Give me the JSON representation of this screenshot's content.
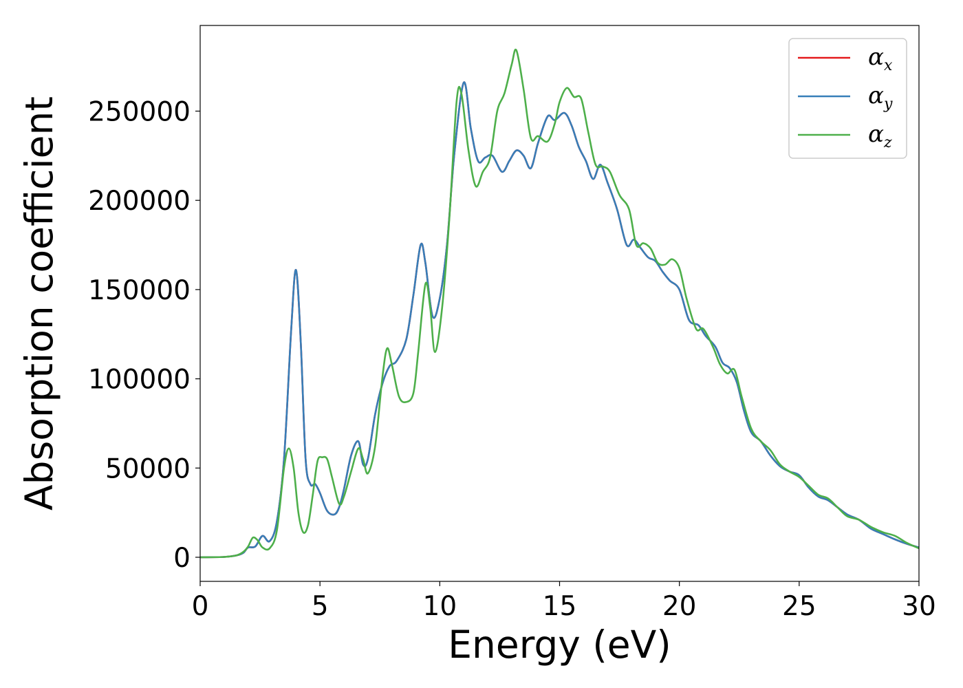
{
  "chart_data": {
    "type": "line",
    "xlabel": "Energy (eV)",
    "ylabel": "Absorption coefficient",
    "xlim": [
      0,
      30
    ],
    "ylim": [
      -13500,
      298000
    ],
    "xticks": [
      0,
      5,
      10,
      15,
      20,
      25,
      30
    ],
    "yticks": [
      0,
      50000,
      100000,
      150000,
      200000,
      250000
    ],
    "grid": false,
    "legend_position": "top-right",
    "series": [
      {
        "name": "α",
        "sub": "x",
        "color": "#e41a1c",
        "x": [
          0,
          1.0,
          1.5,
          1.8,
          2.0,
          2.3,
          2.6,
          2.9,
          3.2,
          3.5,
          3.8,
          4.0,
          4.2,
          4.4,
          4.6,
          4.8,
          5.0,
          5.3,
          5.6,
          5.8,
          6.0,
          6.3,
          6.6,
          6.8,
          7.0,
          7.3,
          7.6,
          7.9,
          8.2,
          8.6,
          8.9,
          9.2,
          9.4,
          9.7,
          10.0,
          10.3,
          10.6,
          11.0,
          11.3,
          11.6,
          11.9,
          12.2,
          12.6,
          12.9,
          13.2,
          13.5,
          13.8,
          14.1,
          14.5,
          14.8,
          15.2,
          15.5,
          15.8,
          16.1,
          16.4,
          16.7,
          17.0,
          17.4,
          17.8,
          18.1,
          18.4,
          18.7,
          19.0,
          19.3,
          19.6,
          20.0,
          20.4,
          20.8,
          21.1,
          21.5,
          21.8,
          22.1,
          22.4,
          22.7,
          23.0,
          23.4,
          23.8,
          24.2,
          24.6,
          25.0,
          25.4,
          25.8,
          26.2,
          26.6,
          27.0,
          27.5,
          28.0,
          28.5,
          29.0,
          29.5,
          30.0
        ],
        "y": [
          0,
          200,
          1000,
          2500,
          5500,
          6000,
          12000,
          9000,
          20000,
          55000,
          128000,
          161000,
          120000,
          55000,
          41000,
          41000,
          36000,
          26000,
          24000,
          28000,
          38000,
          57000,
          65000,
          52000,
          55000,
          80000,
          97000,
          107000,
          110000,
          122000,
          147000,
          175000,
          165000,
          135000,
          145000,
          175000,
          225000,
          266000,
          240000,
          222000,
          224000,
          225000,
          216000,
          222000,
          228000,
          225000,
          218000,
          232000,
          247000,
          245000,
          249000,
          242000,
          230000,
          222000,
          212000,
          220000,
          210000,
          195000,
          175000,
          178000,
          173000,
          168000,
          166000,
          160000,
          155000,
          150000,
          133000,
          130000,
          124000,
          118000,
          109000,
          106000,
          98000,
          82000,
          70000,
          65000,
          57000,
          51000,
          48000,
          46000,
          39000,
          34000,
          32000,
          28000,
          24000,
          21000,
          16000,
          13000,
          10000,
          7500,
          5500
        ]
      },
      {
        "name": "α",
        "sub": "y",
        "color": "#377eb8",
        "x": [
          0,
          1.0,
          1.5,
          1.8,
          2.0,
          2.3,
          2.6,
          2.9,
          3.2,
          3.5,
          3.8,
          4.0,
          4.2,
          4.4,
          4.6,
          4.8,
          5.0,
          5.3,
          5.6,
          5.8,
          6.0,
          6.3,
          6.6,
          6.8,
          7.0,
          7.3,
          7.6,
          7.9,
          8.2,
          8.6,
          8.9,
          9.2,
          9.4,
          9.7,
          10.0,
          10.3,
          10.6,
          11.0,
          11.3,
          11.6,
          11.9,
          12.2,
          12.6,
          12.9,
          13.2,
          13.5,
          13.8,
          14.1,
          14.5,
          14.8,
          15.2,
          15.5,
          15.8,
          16.1,
          16.4,
          16.7,
          17.0,
          17.4,
          17.8,
          18.1,
          18.4,
          18.7,
          19.0,
          19.3,
          19.6,
          20.0,
          20.4,
          20.8,
          21.1,
          21.5,
          21.8,
          22.1,
          22.4,
          22.7,
          23.0,
          23.4,
          23.8,
          24.2,
          24.6,
          25.0,
          25.4,
          25.8,
          26.2,
          26.6,
          27.0,
          27.5,
          28.0,
          28.5,
          29.0,
          29.5,
          30.0
        ],
        "y": [
          0,
          200,
          1000,
          2500,
          5500,
          6000,
          12000,
          9000,
          20000,
          55000,
          128000,
          161000,
          120000,
          55000,
          41000,
          41000,
          36000,
          26000,
          24000,
          28000,
          38000,
          57000,
          65000,
          52000,
          55000,
          80000,
          97000,
          107000,
          110000,
          122000,
          147000,
          175000,
          165000,
          135000,
          145000,
          175000,
          225000,
          266000,
          240000,
          222000,
          224000,
          225000,
          216000,
          222000,
          228000,
          225000,
          218000,
          232000,
          247000,
          245000,
          249000,
          242000,
          230000,
          222000,
          212000,
          220000,
          210000,
          195000,
          175000,
          178000,
          173000,
          168000,
          166000,
          160000,
          155000,
          150000,
          133000,
          130000,
          124000,
          118000,
          109000,
          106000,
          98000,
          82000,
          70000,
          65000,
          57000,
          51000,
          48000,
          46000,
          39000,
          34000,
          32000,
          28000,
          24000,
          21000,
          16000,
          13000,
          10000,
          7500,
          5500
        ]
      },
      {
        "name": "α",
        "sub": "z",
        "color": "#4daf4a",
        "x": [
          0,
          1.0,
          1.5,
          1.8,
          2.0,
          2.2,
          2.4,
          2.6,
          2.9,
          3.2,
          3.5,
          3.7,
          3.9,
          4.1,
          4.3,
          4.5,
          4.7,
          4.9,
          5.1,
          5.3,
          5.5,
          5.8,
          6.0,
          6.3,
          6.6,
          6.8,
          7.0,
          7.3,
          7.6,
          7.8,
          8.0,
          8.3,
          8.6,
          8.9,
          9.1,
          9.4,
          9.6,
          9.8,
          10.1,
          10.4,
          10.7,
          10.9,
          11.2,
          11.5,
          11.8,
          12.1,
          12.4,
          12.7,
          13.0,
          13.2,
          13.5,
          13.8,
          14.1,
          14.5,
          14.8,
          15.0,
          15.3,
          15.6,
          15.9,
          16.2,
          16.5,
          16.8,
          17.1,
          17.5,
          17.9,
          18.2,
          18.5,
          18.8,
          19.1,
          19.4,
          19.7,
          20.0,
          20.3,
          20.7,
          21.0,
          21.4,
          21.7,
          22.0,
          22.3,
          22.6,
          23.0,
          23.4,
          23.8,
          24.2,
          24.6,
          25.0,
          25.4,
          25.8,
          26.2,
          26.6,
          27.0,
          27.5,
          28.0,
          28.5,
          29.0,
          29.5,
          30.0
        ],
        "y": [
          0,
          200,
          1000,
          3000,
          6000,
          11000,
          9500,
          5500,
          5000,
          15000,
          50000,
          61000,
          50000,
          25000,
          14000,
          18000,
          35000,
          54000,
          56000,
          55000,
          45000,
          30000,
          34000,
          48000,
          61000,
          55000,
          47000,
          62000,
          100000,
          117000,
          108000,
          90000,
          87000,
          92000,
          115000,
          153000,
          140000,
          115000,
          140000,
          190000,
          255000,
          260000,
          228000,
          208000,
          216000,
          224000,
          250000,
          260000,
          276000,
          284000,
          262000,
          235000,
          236000,
          233000,
          243000,
          255000,
          263000,
          258000,
          257000,
          238000,
          220000,
          219000,
          216000,
          203000,
          195000,
          175000,
          176000,
          173000,
          165000,
          164000,
          167000,
          162000,
          145000,
          128000,
          128000,
          118000,
          108000,
          103000,
          105000,
          90000,
          72000,
          65000,
          60000,
          52000,
          48000,
          45000,
          40000,
          35000,
          33000,
          28000,
          23000,
          21000,
          17000,
          14000,
          12000,
          8000,
          5000
        ]
      }
    ]
  }
}
